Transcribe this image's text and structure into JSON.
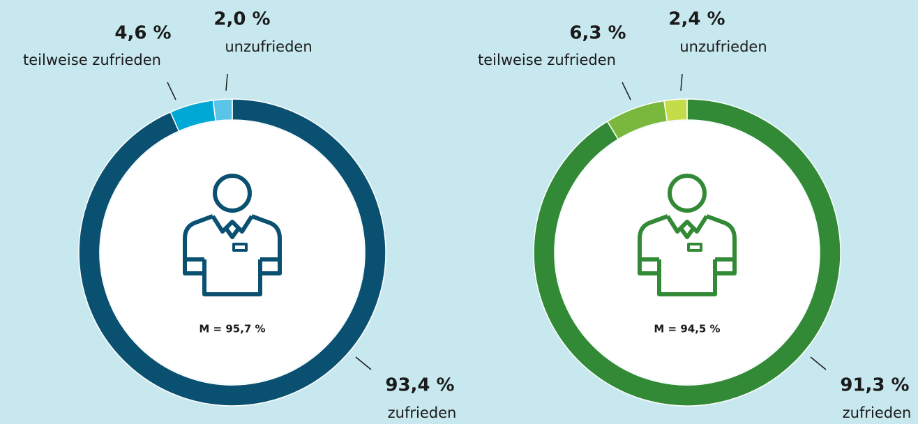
{
  "chart_data": [
    {
      "type": "donut",
      "annotation": "M = 95,7 %",
      "categories": [
        "zufrieden",
        "teilweise zufrieden",
        "unzufrieden"
      ],
      "values": [
        93.4,
        4.6,
        2.0
      ],
      "value_labels": [
        "93,4 %",
        "4,6 %",
        "2,0 %"
      ],
      "colors": [
        "#0a5070",
        "#00a8d6",
        "#5bc5e8"
      ]
    },
    {
      "type": "donut",
      "annotation": "M = 94,5 %",
      "categories": [
        "zufrieden",
        "teilweise zufrieden",
        "unzufrieden"
      ],
      "values": [
        91.3,
        6.3,
        2.4
      ],
      "value_labels": [
        "91,3 %",
        "6,3 %",
        "2,4 %"
      ],
      "colors": [
        "#338a36",
        "#7ab83d",
        "#c4dc4a"
      ]
    }
  ]
}
